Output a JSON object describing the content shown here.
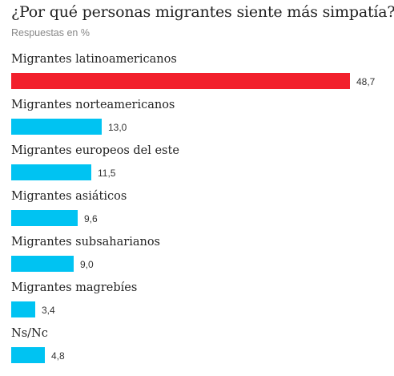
{
  "header": {
    "title": "¿Por qué personas migrantes siente más simpatía?",
    "subtitle": "Respuestas en %"
  },
  "colors": {
    "highlight": "#f2202c",
    "default": "#00c3f2"
  },
  "chart_data": {
    "type": "bar",
    "orientation": "horizontal",
    "title": "¿Por qué personas migrantes siente más simpatía?",
    "subtitle": "Respuestas en %",
    "categories": [
      "Migrantes latinoamericanos",
      "Migrantes norteamericanos",
      "Migrantes europeos del este",
      "Migrantes asiáticos",
      "Migrantes subsaharianos",
      "Migrantes magrebíes",
      "Ns/Nc"
    ],
    "values": [
      48.7,
      13.0,
      11.5,
      9.6,
      9.0,
      3.4,
      4.8
    ],
    "value_labels": [
      "48,7",
      "13,0",
      "11,5",
      "9,6",
      "9,0",
      "3,4",
      "4,8"
    ],
    "highlight_index": 0,
    "xlim": [
      0,
      48.7
    ],
    "grid": false,
    "legend": "none"
  }
}
